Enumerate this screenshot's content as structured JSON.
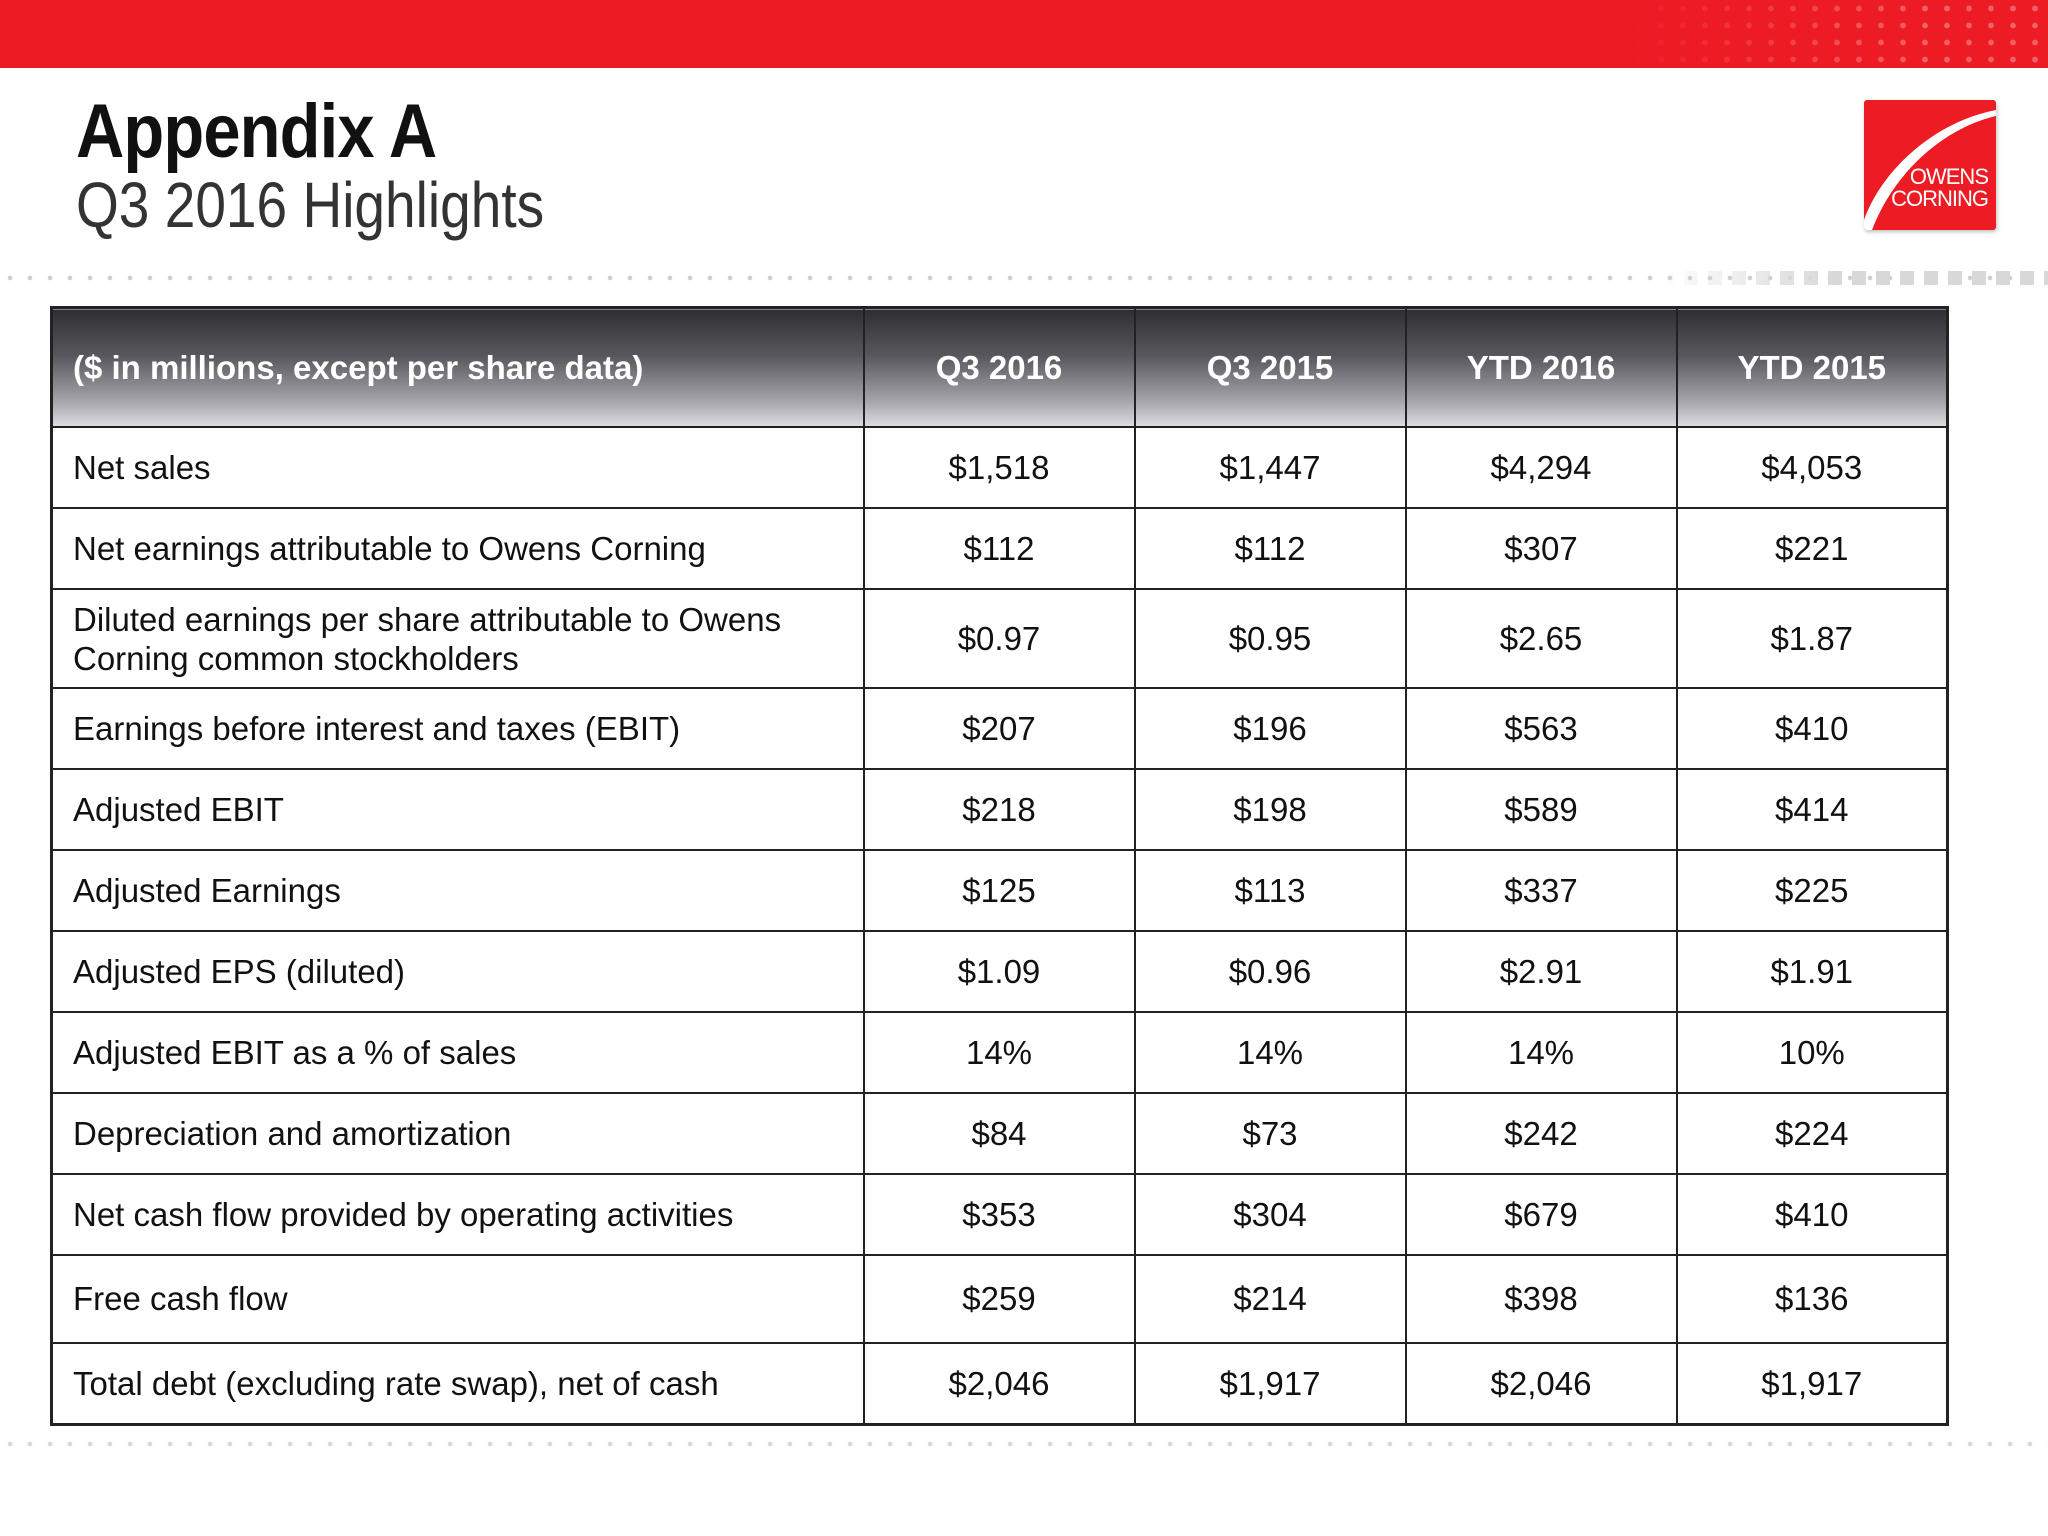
{
  "header": {
    "title": "Appendix A",
    "subtitle": "Q3 2016 Highlights"
  },
  "logo": {
    "line1": "OWENS",
    "line2": "CORNING",
    "color": "#ed1c24"
  },
  "colors": {
    "accent_red": "#ed1c24",
    "header_dark": "#2f2f33"
  },
  "table": {
    "columns": [
      "($ in millions, except per share data)",
      "Q3 2016",
      "Q3 2015",
      "YTD 2016",
      "YTD 2015"
    ],
    "rows": [
      {
        "label": "Net sales",
        "values": [
          "$1,518",
          "$1,447",
          "$4,294",
          "$4,053"
        ]
      },
      {
        "label": "Net earnings attributable to Owens Corning",
        "values": [
          "$112",
          "$112",
          "$307",
          "$221"
        ]
      },
      {
        "label": "Diluted earnings per share attributable to Owens Corning common stockholders",
        "values": [
          "$0.97",
          "$0.95",
          "$2.65",
          "$1.87"
        ]
      },
      {
        "label": "Earnings before interest and taxes (EBIT)",
        "values": [
          "$207",
          "$196",
          "$563",
          "$410"
        ]
      },
      {
        "label": "Adjusted EBIT",
        "values": [
          "$218",
          "$198",
          "$589",
          "$414"
        ]
      },
      {
        "label": "Adjusted Earnings",
        "values": [
          "$125",
          "$113",
          "$337",
          "$225"
        ]
      },
      {
        "label": "Adjusted EPS (diluted)",
        "values": [
          "$1.09",
          "$0.96",
          "$2.91",
          "$1.91"
        ]
      },
      {
        "label": "Adjusted EBIT as a % of sales",
        "values": [
          "14%",
          "14%",
          "14%",
          "10%"
        ]
      },
      {
        "label": "Depreciation and amortization",
        "values": [
          "$84",
          "$73",
          "$242",
          "$224"
        ]
      },
      {
        "label": "Net cash flow provided by operating activities",
        "values": [
          "$353",
          "$304",
          "$679",
          "$410"
        ]
      },
      {
        "label": "Free cash flow",
        "values": [
          "$259",
          "$214",
          "$398",
          "$136"
        ]
      },
      {
        "label": "Total debt (excluding rate swap), net of cash",
        "values": [
          "$2,046",
          "$1,917",
          "$2,046",
          "$1,917"
        ]
      }
    ]
  }
}
